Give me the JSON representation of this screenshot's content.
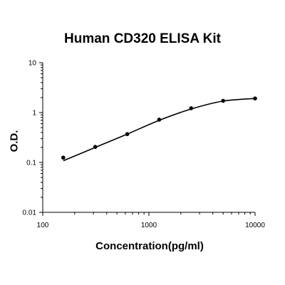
{
  "chart_data": {
    "type": "scatter",
    "title": "Human CD320 ELISA Kit",
    "xlabel": "Concentration(pg/ml)",
    "ylabel": "O.D.",
    "x_scale": "log",
    "y_scale": "log",
    "xlim": [
      100,
      10000
    ],
    "ylim": [
      0.01,
      10
    ],
    "x_ticks": [
      "100",
      "1000",
      "10000"
    ],
    "y_ticks": [
      "0.01",
      "0.1",
      "1",
      "10"
    ],
    "grid": false,
    "legend": "none",
    "series": [
      {
        "points": [
          {
            "x": 156,
            "y": 0.125
          },
          {
            "x": 312,
            "y": 0.205
          },
          {
            "x": 625,
            "y": 0.37
          },
          {
            "x": 1250,
            "y": 0.72
          },
          {
            "x": 2500,
            "y": 1.22
          },
          {
            "x": 5000,
            "y": 1.72
          },
          {
            "x": 10000,
            "y": 1.92
          }
        ],
        "fit_curve": [
          {
            "x": 156,
            "y": 0.108
          },
          {
            "x": 312,
            "y": 0.2
          },
          {
            "x": 625,
            "y": 0.37
          },
          {
            "x": 1250,
            "y": 0.7
          },
          {
            "x": 2500,
            "y": 1.18
          },
          {
            "x": 5000,
            "y": 1.7
          },
          {
            "x": 10000,
            "y": 1.92
          }
        ]
      }
    ],
    "colors": {
      "marker": "#000000",
      "line": "#000000",
      "axis": "#000000"
    }
  }
}
